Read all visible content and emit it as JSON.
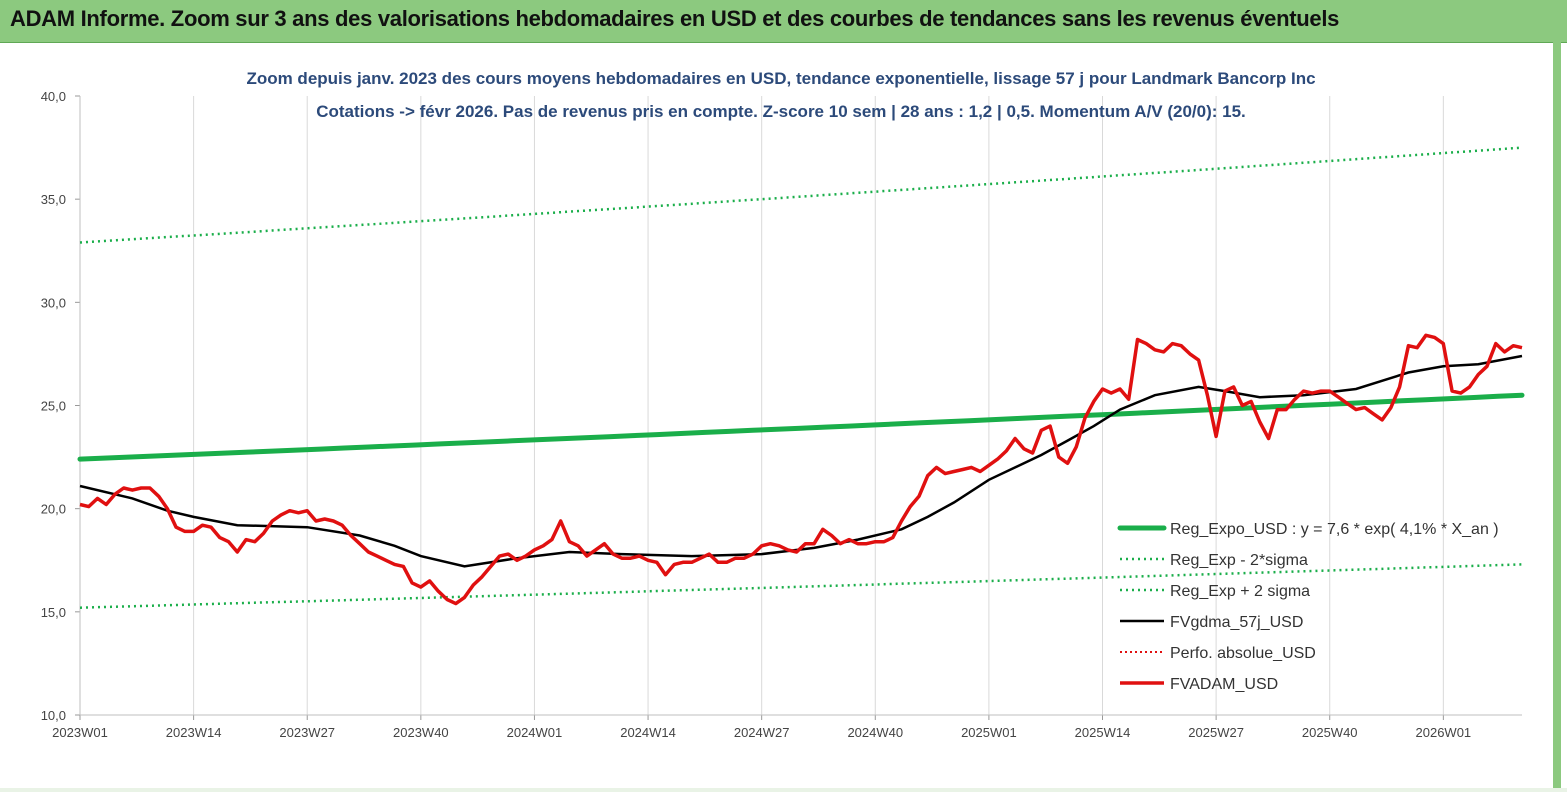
{
  "header": {
    "title": "ADAM Informe. Zoom sur 3 ans des valorisations hebdomadaires en USD et des courbes de tendances sans les revenus éventuels"
  },
  "colors": {
    "banner": "#8cc97f",
    "reg_expo": "#1aae4a",
    "sigma": "#1aae4a",
    "fvgdma": "#000000",
    "perfo": "#e01010",
    "fvadam": "#e01010",
    "title_text": "#2c4a7a"
  },
  "chart_data": {
    "type": "line",
    "title": "Zoom depuis janv. 2023 des cours moyens hebdomadaires en USD, tendance exponentielle, lissage 57 j pour Landmark Bancorp Inc",
    "subtitle": "Cotations -> févr 2026.  Pas de revenus pris en compte. Z-score 10 sem  | 28 ans : 1,2 | 0,5. Momentum A/V (20/0): 15.",
    "xlabel": "",
    "ylabel": "",
    "ylim": [
      10,
      40
    ],
    "yticks": [
      "10,0",
      "15,0",
      "20,0",
      "25,0",
      "30,0",
      "35,0",
      "40,0"
    ],
    "xticks": [
      "2023W01",
      "2023W14",
      "2023W27",
      "2023W40",
      "2024W01",
      "2024W14",
      "2024W27",
      "2024W40",
      "2025W01",
      "2025W14",
      "2025W27",
      "2025W40",
      "2026W01"
    ],
    "xlim_weeks": [
      0,
      165
    ],
    "grid": "vertical",
    "legend_position": "right",
    "series": [
      {
        "name": "Reg_Expo_USD : y = 7,6 * exp( 4,1% *  X_an )",
        "style": "solid-thick-green",
        "x": [
          0,
          165
        ],
        "values": [
          22.4,
          25.5
        ]
      },
      {
        "name": "Reg_Exp - 2*sigma",
        "style": "dotted-green",
        "x": [
          0,
          165
        ],
        "values": [
          15.2,
          17.3
        ]
      },
      {
        "name": "Reg_Exp + 2 sigma",
        "style": "dotted-green",
        "x": [
          0,
          165
        ],
        "values": [
          32.9,
          37.5
        ]
      },
      {
        "name": "FVgdma_57j_USD",
        "style": "solid-black",
        "x": [
          0,
          6,
          10,
          13,
          18,
          26,
          32,
          36,
          39,
          44,
          50,
          56,
          62,
          70,
          78,
          84,
          89,
          94,
          97,
          100,
          104,
          110,
          113,
          116,
          119,
          123,
          128,
          131,
          135,
          140,
          146,
          152,
          156,
          160,
          165
        ],
        "values": [
          21.1,
          20.5,
          19.9,
          19.6,
          19.2,
          19.1,
          18.7,
          18.2,
          17.7,
          17.2,
          17.6,
          17.9,
          17.8,
          17.7,
          17.8,
          18.1,
          18.5,
          19.0,
          19.6,
          20.3,
          21.4,
          22.6,
          23.3,
          24.0,
          24.8,
          25.5,
          25.9,
          25.7,
          25.4,
          25.5,
          25.8,
          26.6,
          26.9,
          27.0,
          27.4
        ]
      },
      {
        "name": "Perfo. absolue_USD",
        "style": "dotted-red",
        "x": [],
        "values": []
      },
      {
        "name": "FVADAM_USD",
        "style": "solid-red",
        "x": [
          0,
          1,
          2,
          3,
          4,
          5,
          6,
          7,
          8,
          9,
          10,
          11,
          12,
          13,
          14,
          15,
          16,
          17,
          18,
          19,
          20,
          21,
          22,
          23,
          24,
          25,
          26,
          27,
          28,
          29,
          30,
          31,
          32,
          33,
          34,
          35,
          36,
          37,
          38,
          39,
          40,
          41,
          42,
          43,
          44,
          45,
          46,
          47,
          48,
          49,
          50,
          51,
          52,
          53,
          54,
          55,
          56,
          57,
          58,
          59,
          60,
          61,
          62,
          63,
          64,
          65,
          66,
          67,
          68,
          69,
          70,
          71,
          72,
          73,
          74,
          75,
          76,
          77,
          78,
          79,
          80,
          81,
          82,
          83,
          84,
          85,
          86,
          87,
          88,
          89,
          90,
          91,
          92,
          93,
          94,
          95,
          96,
          97,
          98,
          99,
          100,
          101,
          102,
          103,
          104,
          105,
          106,
          107,
          108,
          109,
          110,
          111,
          112,
          113,
          114,
          115,
          116,
          117,
          118,
          119,
          120,
          121,
          122,
          123,
          124,
          125,
          126,
          127,
          128,
          129,
          130,
          131,
          132,
          133,
          134,
          135,
          136,
          137,
          138,
          139,
          140,
          141,
          142,
          143,
          144,
          145,
          146,
          147,
          148,
          149,
          150,
          151,
          152,
          153,
          154,
          155,
          156,
          157,
          158,
          159,
          160,
          161,
          162,
          163,
          164,
          165
        ],
        "values": [
          20.2,
          20.1,
          20.5,
          20.2,
          20.7,
          21.0,
          20.9,
          21.0,
          21.0,
          20.6,
          20.0,
          19.1,
          18.9,
          18.9,
          19.2,
          19.1,
          18.6,
          18.4,
          17.9,
          18.5,
          18.4,
          18.8,
          19.4,
          19.7,
          19.9,
          19.8,
          19.9,
          19.4,
          19.5,
          19.4,
          19.2,
          18.7,
          18.3,
          17.9,
          17.7,
          17.5,
          17.3,
          17.2,
          16.4,
          16.2,
          16.5,
          16.0,
          15.6,
          15.4,
          15.7,
          16.3,
          16.7,
          17.2,
          17.7,
          17.8,
          17.5,
          17.7,
          18.0,
          18.2,
          18.5,
          19.4,
          18.4,
          18.2,
          17.7,
          18.0,
          18.3,
          17.8,
          17.6,
          17.6,
          17.7,
          17.5,
          17.4,
          16.8,
          17.3,
          17.4,
          17.4,
          17.6,
          17.8,
          17.4,
          17.4,
          17.6,
          17.6,
          17.8,
          18.2,
          18.3,
          18.2,
          18.0,
          17.9,
          18.3,
          18.3,
          19.0,
          18.7,
          18.3,
          18.5,
          18.3,
          18.3,
          18.4,
          18.4,
          18.6,
          19.4,
          20.1,
          20.6,
          21.6,
          22.0,
          21.7,
          21.8,
          21.9,
          22.0,
          21.8,
          22.1,
          22.4,
          22.8,
          23.4,
          22.9,
          22.7,
          23.8,
          24.0,
          22.5,
          22.2,
          23.0,
          24.4,
          25.2,
          25.8,
          25.6,
          25.8,
          25.3,
          28.2,
          28.0,
          27.7,
          27.6,
          28.0,
          27.9,
          27.5,
          27.2,
          25.5,
          23.5,
          25.7,
          25.9,
          25.0,
          25.2,
          24.2,
          23.4,
          24.8,
          24.8,
          25.3,
          25.7,
          25.6,
          25.7,
          25.7,
          25.4,
          25.1,
          24.8,
          24.9,
          24.6,
          24.3,
          24.9,
          25.9,
          27.9,
          27.8,
          28.4,
          28.3,
          28.0,
          25.7,
          25.6,
          25.9,
          26.5,
          26.9,
          28.0,
          27.6,
          27.9,
          27.8
        ]
      }
    ]
  }
}
